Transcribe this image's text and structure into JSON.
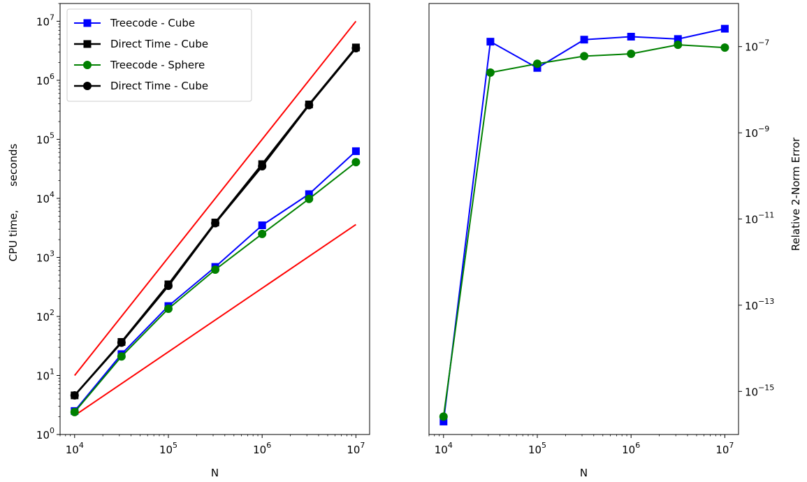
{
  "chart_data": [
    {
      "type": "line",
      "xscale": "log",
      "yscale": "log",
      "xlim": [
        7000,
        14000000
      ],
      "ylim": [
        1,
        20000000
      ],
      "xlabel": "N",
      "ylabel": "CPU time,       seconds",
      "xticks": [
        {
          "base": "10",
          "exp": "4",
          "value": 10000
        },
        {
          "base": "10",
          "exp": "5",
          "value": 100000
        },
        {
          "base": "10",
          "exp": "6",
          "value": 1000000
        },
        {
          "base": "10",
          "exp": "7",
          "value": 10000000
        }
      ],
      "yticks": [
        {
          "base": "10",
          "exp": "0",
          "value": 1
        },
        {
          "base": "10",
          "exp": "1",
          "value": 10
        },
        {
          "base": "10",
          "exp": "2",
          "value": 100
        },
        {
          "base": "10",
          "exp": "3",
          "value": 1000
        },
        {
          "base": "10",
          "exp": "4",
          "value": 10000
        },
        {
          "base": "10",
          "exp": "5",
          "value": 100000
        },
        {
          "base": "10",
          "exp": "6",
          "value": 1000000
        },
        {
          "base": "10",
          "exp": "7",
          "value": 10000000
        }
      ],
      "legend": "top-left",
      "grid": false,
      "series": [
        {
          "name": "Treecode - Cube",
          "color": "#0000ff",
          "marker": "square",
          "lineWidth": 2,
          "x": [
            10000,
            31623,
            100000,
            316228,
            1000000,
            3162278,
            10000000
          ],
          "y": [
            2.5,
            23,
            150,
            690,
            3500,
            11800,
            63000
          ]
        },
        {
          "name": "Direct Time - Cube",
          "color": "#000000",
          "marker": "square",
          "lineWidth": 2.6,
          "x": [
            10000,
            31623,
            100000,
            316228,
            1000000,
            3162278,
            10000000
          ],
          "y": [
            4.6,
            37,
            350,
            3900,
            38000,
            390000,
            3600000
          ]
        },
        {
          "name": "Treecode - Sphere",
          "color": "#008000",
          "marker": "circle",
          "lineWidth": 2,
          "x": [
            10000,
            31623,
            100000,
            316228,
            1000000,
            3162278,
            10000000
          ],
          "y": [
            2.4,
            21,
            135,
            620,
            2500,
            9800,
            41000
          ]
        },
        {
          "name": "Direct Time - Cube",
          "color": "#000000",
          "marker": "circle",
          "lineWidth": 2.6,
          "x": [
            10000,
            31623,
            100000,
            316228,
            1000000,
            3162278,
            10000000
          ],
          "y": [
            4.6,
            36,
            330,
            3800,
            35000,
            380000,
            3500000
          ]
        }
      ],
      "reference_lines": [
        {
          "color": "#ff0000",
          "x": [
            10000,
            10000000
          ],
          "y": [
            10,
            10000000
          ]
        },
        {
          "color": "#ff0000",
          "x": [
            10000,
            10000000
          ],
          "y": [
            2.1,
            3600
          ]
        }
      ]
    },
    {
      "type": "line",
      "xscale": "log",
      "yscale": "log",
      "xlim": [
        7000,
        14000000
      ],
      "ylim": [
        1e-16,
        1e-06
      ],
      "xlabel": "N",
      "ylabel": "Relative 2-Norm Error",
      "ylabel_side": "right",
      "xticks": [
        {
          "base": "10",
          "exp": "4",
          "value": 10000
        },
        {
          "base": "10",
          "exp": "5",
          "value": 100000
        },
        {
          "base": "10",
          "exp": "6",
          "value": 1000000
        },
        {
          "base": "10",
          "exp": "7",
          "value": 10000000
        }
      ],
      "yticks": [
        {
          "base": "10",
          "exp": "−15",
          "value": 1e-15
        },
        {
          "base": "10",
          "exp": "−13",
          "value": 1e-13
        },
        {
          "base": "10",
          "exp": "−11",
          "value": 1e-11
        },
        {
          "base": "10",
          "exp": "−9",
          "value": 1e-09
        },
        {
          "base": "10",
          "exp": "−7",
          "value": 1e-07
        }
      ],
      "grid": false,
      "series": [
        {
          "name": "",
          "color": "#0000ff",
          "marker": "square",
          "lineWidth": 2,
          "x": [
            10000,
            31623,
            100000,
            316228,
            1000000,
            3162278,
            10000000
          ],
          "y": [
            2e-16,
            1.3e-07,
            3.2e-08,
            1.45e-07,
            1.7e-07,
            1.5e-07,
            2.6e-07
          ]
        },
        {
          "name": "",
          "color": "#008000",
          "marker": "circle",
          "lineWidth": 2,
          "x": [
            10000,
            31623,
            100000,
            316228,
            1000000,
            3162278,
            10000000
          ],
          "y": [
            2.6e-16,
            2.5e-08,
            4e-08,
            6e-08,
            6.8e-08,
            1.1e-07,
            9.5e-08
          ]
        }
      ]
    }
  ]
}
